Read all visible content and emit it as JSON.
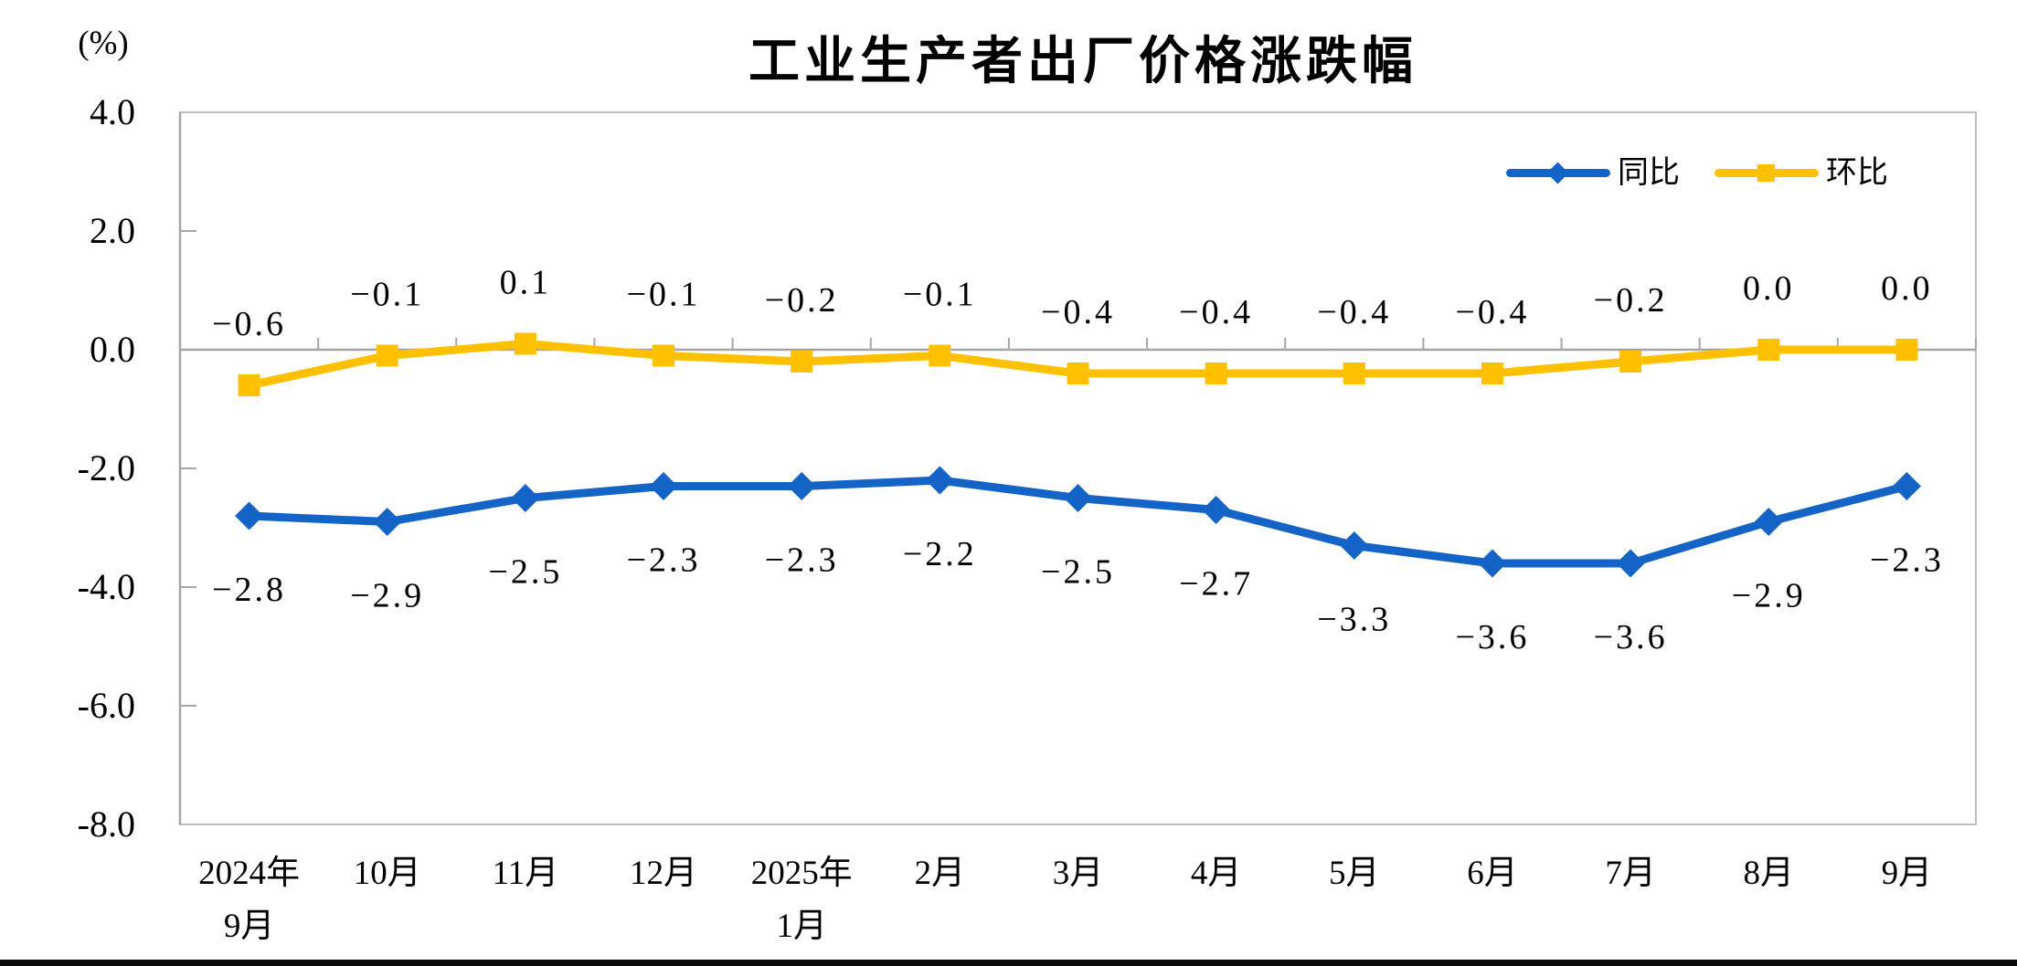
{
  "title": "工业生产者出厂价格涨跌幅",
  "y_axis": {
    "unit_label": "(%)",
    "ticks": [
      "4.0",
      "2.0",
      "0.0",
      "-2.0",
      "-4.0",
      "-6.0",
      "-8.0"
    ],
    "max": 4.0,
    "min": -8.0,
    "step": 2.0
  },
  "x_axis": {
    "categories": [
      [
        "2024年",
        "9月"
      ],
      [
        "10月"
      ],
      [
        "11月"
      ],
      [
        "12月"
      ],
      [
        "2025年",
        "1月"
      ],
      [
        "2月"
      ],
      [
        "3月"
      ],
      [
        "4月"
      ],
      [
        "5月"
      ],
      [
        "6月"
      ],
      [
        "7月"
      ],
      [
        "8月"
      ],
      [
        "9月"
      ]
    ]
  },
  "legend": [
    {
      "name": "同比",
      "color": "#1464C8",
      "marker": "diamond"
    },
    {
      "name": "环比",
      "color": "#FFC000",
      "marker": "square"
    }
  ],
  "colors": {
    "series_tongbi": "#1464C8",
    "series_huanbi": "#FFC000",
    "axis_line": "#A6A6A6",
    "plot_border": "#BFBFBF",
    "text": "#000000",
    "bottom_bar": "#0A0A0A"
  },
  "chart_data": {
    "type": "line",
    "title": "工业生产者出厂价格涨跌幅",
    "ylabel": "(%)",
    "ylim": [
      -8.0,
      4.0
    ],
    "ystep": 2.0,
    "grid": false,
    "legend_position": "top-right",
    "categories": [
      "2024年9月",
      "10月",
      "11月",
      "12月",
      "2025年1月",
      "2月",
      "3月",
      "4月",
      "5月",
      "6月",
      "7月",
      "8月",
      "9月"
    ],
    "series": [
      {
        "name": "同比",
        "color": "#1464C8",
        "marker": "diamond",
        "label_side": "below",
        "values": [
          -2.8,
          -2.9,
          -2.5,
          -2.3,
          -2.3,
          -2.2,
          -2.5,
          -2.7,
          -3.3,
          -3.6,
          -3.6,
          -2.9,
          -2.3
        ],
        "point_labels": [
          "−2.8",
          "−2.9",
          "−2.5",
          "−2.3",
          "−2.3",
          "−2.2",
          "−2.5",
          "−2.7",
          "−3.3",
          "−3.6",
          "−3.6",
          "−2.9",
          "−2.3"
        ]
      },
      {
        "name": "环比",
        "color": "#FFC000",
        "marker": "square",
        "label_side": "above",
        "values": [
          -0.6,
          -0.1,
          0.1,
          -0.1,
          -0.2,
          -0.1,
          -0.4,
          -0.4,
          -0.4,
          -0.4,
          -0.2,
          0.0,
          0.0
        ],
        "point_labels": [
          "−0.6",
          "−0.1",
          "0.1",
          "−0.1",
          "−0.2",
          "−0.1",
          "−0.4",
          "−0.4",
          "−0.4",
          "−0.4",
          "−0.2",
          "0.0",
          "0.0"
        ]
      }
    ]
  }
}
